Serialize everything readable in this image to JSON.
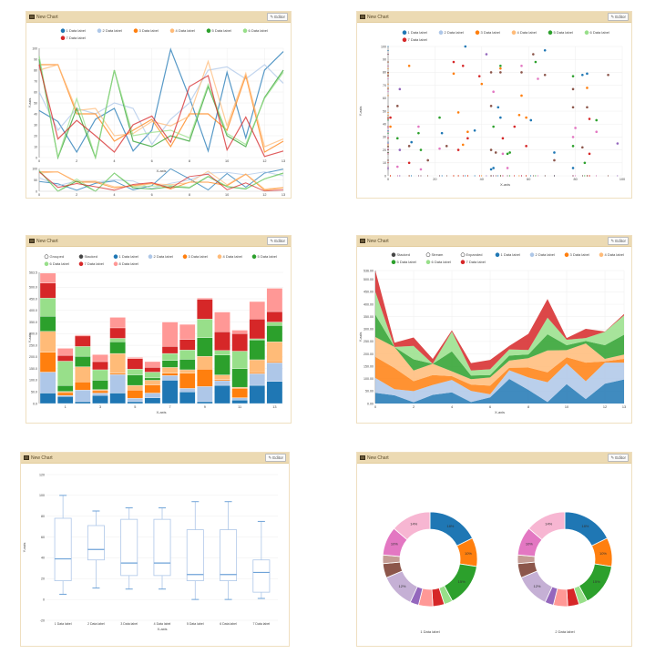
{
  "panels": [
    {
      "title": "New Chart",
      "editor": "Editor"
    },
    {
      "title": "New Chart",
      "editor": "Editor"
    },
    {
      "title": "New Chart",
      "editor": "Editor"
    },
    {
      "title": "New Chart",
      "editor": "Editor"
    },
    {
      "title": "New Chart",
      "editor": "Editor"
    },
    {
      "title": "New Chart",
      "editor": "Editor"
    }
  ],
  "colors": [
    "#1f77b4",
    "#aec7e8",
    "#ff7f0e",
    "#ffbb78",
    "#2ca02c",
    "#98df8a",
    "#d62728",
    "#ff9896",
    "#9467bd",
    "#c5b0d5",
    "#8c564b",
    "#c49c94",
    "#e377c2",
    "#f7b6d2"
  ],
  "chart_data": [
    {
      "type": "line",
      "xlabel": "X-axis",
      "ylabel": "Y-axis",
      "xlim": [
        0,
        13
      ],
      "ylim": [
        0,
        100
      ],
      "grid": true,
      "legend": "top",
      "xticks": [
        "0",
        "2",
        "4",
        "6",
        "8",
        "10",
        "12",
        "13"
      ],
      "yticks": [
        "0",
        "10",
        "20",
        "30",
        "40",
        "50",
        "60",
        "70",
        "80",
        "90",
        "100"
      ],
      "context_yticks": [
        "0",
        "50",
        "100"
      ],
      "x": [
        0,
        1,
        2,
        3,
        4,
        5,
        6,
        7,
        8,
        9,
        10,
        11,
        12,
        13
      ],
      "series": [
        {
          "name": "1 Data label",
          "values": [
            43,
            33,
            5,
            35,
            45,
            6,
            25,
            99,
            55,
            6,
            78,
            18,
            80,
            97
          ]
        },
        {
          "name": "2 Data label",
          "values": [
            60,
            25,
            45,
            40,
            50,
            45,
            12,
            35,
            50,
            80,
            83,
            72,
            85,
            68
          ]
        },
        {
          "name": "3 Data label",
          "values": [
            85,
            85,
            40,
            40,
            15,
            25,
            35,
            10,
            40,
            40,
            25,
            75,
            5,
            15
          ]
        },
        {
          "name": "4 Data label",
          "values": [
            80,
            85,
            43,
            45,
            20,
            22,
            33,
            29,
            38,
            88,
            29,
            77,
            10,
            17
          ]
        },
        {
          "name": "5 Data label",
          "values": [
            90,
            0,
            45,
            0,
            80,
            15,
            10,
            20,
            15,
            65,
            20,
            10,
            55,
            80
          ]
        },
        {
          "name": "6 Data label",
          "values": [
            93,
            0,
            54,
            0,
            80,
            20,
            23,
            25,
            18,
            67,
            22,
            12,
            54,
            78
          ]
        },
        {
          "name": "7 Data label",
          "values": [
            85,
            17,
            34,
            20,
            5,
            30,
            38,
            14,
            65,
            75,
            7,
            37,
            1,
            6
          ]
        }
      ]
    },
    {
      "type": "scatter",
      "xlabel": "X-axis",
      "ylabel": "Y-axis",
      "xlim": [
        0,
        100
      ],
      "ylim": [
        0,
        100
      ],
      "grid": true,
      "legend": "top",
      "xticks": [
        "0",
        "20",
        "40",
        "60",
        "80",
        "100"
      ],
      "yticks": [
        "0",
        "10",
        "20",
        "30",
        "40",
        "50",
        "60",
        "70",
        "80",
        "90",
        "100"
      ],
      "series": [
        {
          "name": "1 Data label",
          "points": [
            [
              33,
              100
            ],
            [
              67,
              97
            ],
            [
              83,
              78
            ],
            [
              85,
              79
            ],
            [
              47,
              53
            ],
            [
              48,
              45
            ],
            [
              61,
              43
            ],
            [
              23,
              33
            ],
            [
              37,
              35
            ],
            [
              10,
              26
            ],
            [
              44,
              5
            ],
            [
              45,
              6
            ],
            [
              71,
              18
            ],
            [
              79,
              6
            ]
          ]
        },
        {
          "name": "2 Data label",
          "points": [
            [
              9,
              85
            ],
            [
              28,
              79
            ],
            [
              40,
              71
            ],
            [
              48,
              83
            ],
            [
              57,
              62
            ],
            [
              85,
              68
            ],
            [
              30,
              49
            ],
            [
              56,
              47
            ],
            [
              59,
              45
            ],
            [
              34,
              34
            ],
            [
              32,
              24
            ],
            [
              1,
              38
            ]
          ]
        },
        {
          "name": "3 Data label",
          "points": [
            [
              63,
              88
            ],
            [
              48,
              85
            ],
            [
              79,
              77
            ],
            [
              22,
              45
            ],
            [
              45,
              38
            ],
            [
              89,
              43
            ],
            [
              4,
              29
            ],
            [
              13,
              33
            ],
            [
              14,
              20
            ],
            [
              51,
              17
            ],
            [
              52,
              18
            ],
            [
              84,
              10
            ],
            [
              79,
              23
            ]
          ]
        },
        {
          "name": "4 Data label",
          "points": [
            [
              28,
              88
            ],
            [
              32,
              85
            ],
            [
              39,
              77
            ],
            [
              1,
              45
            ],
            [
              54,
              38
            ],
            [
              34,
              29
            ],
            [
              49,
              29
            ],
            [
              30,
              20
            ],
            [
              59,
              23
            ],
            [
              9,
              10
            ],
            [
              86,
              44
            ],
            [
              86,
              17
            ]
          ]
        },
        {
          "name": "5 Data label",
          "points": [
            [
              5,
              67
            ],
            [
              42,
              94
            ],
            [
              5,
              20
            ],
            [
              98,
              25
            ]
          ]
        },
        {
          "name": "6 Data label",
          "points": [
            [
              62,
              94
            ],
            [
              48,
              80
            ],
            [
              44,
              80
            ],
            [
              57,
              80
            ],
            [
              67,
              78
            ],
            [
              4,
              54
            ],
            [
              44,
              54
            ],
            [
              79,
              67
            ],
            [
              79,
              53
            ],
            [
              85,
              53
            ],
            [
              9,
              23
            ],
            [
              25,
              23
            ],
            [
              44,
              20
            ],
            [
              46,
              18
            ],
            [
              71,
              12
            ],
            [
              17,
              12
            ],
            [
              83,
              22
            ],
            [
              94,
              78
            ]
          ]
        },
        {
          "name": "7 Data label",
          "points": [
            [
              57,
              85
            ],
            [
              64,
              75
            ],
            [
              45,
              65
            ],
            [
              13,
              38
            ],
            [
              80,
              37
            ],
            [
              89,
              34
            ],
            [
              79,
              30
            ],
            [
              22,
              21
            ],
            [
              49,
              17
            ],
            [
              51,
              6
            ],
            [
              14,
              5
            ],
            [
              4,
              7
            ]
          ]
        }
      ]
    },
    {
      "type": "bar",
      "stacked": true,
      "controls": [
        "Grouped",
        "Stacked"
      ],
      "selected_control": "Stacked",
      "xlabel": "X-axis",
      "ylabel": "Y-axis",
      "ylim": [
        0,
        563.5
      ],
      "grid": true,
      "legend": "top",
      "categories": [
        0,
        1,
        2,
        3,
        4,
        5,
        6,
        7,
        8,
        9,
        10,
        11,
        12,
        13
      ],
      "xticks": [
        "1",
        "3",
        "5",
        "7",
        "9",
        "11",
        "13"
      ],
      "yticks": [
        "0.0",
        "50.0",
        "100.0",
        "150.0",
        "200.0",
        "250.0",
        "300.0",
        "350.0",
        "400.0",
        "450.0",
        "500.0",
        "563.5"
      ],
      "series": [
        {
          "name": "1 Data label",
          "values": [
            45,
            30,
            8,
            35,
            45,
            8,
            25,
            100,
            50,
            8,
            78,
            15,
            78,
            95
          ]
        },
        {
          "name": "2 Data label",
          "values": [
            90,
            5,
            50,
            10,
            80,
            15,
            20,
            20,
            15,
            65,
            20,
            10,
            50,
            80
          ]
        },
        {
          "name": "3 Data label",
          "values": [
            85,
            12,
            35,
            10,
            5,
            35,
            35,
            10,
            65,
            75,
            5,
            40,
            5,
            5
          ]
        },
        {
          "name": "4 Data label",
          "values": [
            90,
            5,
            65,
            5,
            85,
            20,
            20,
            25,
            15,
            55,
            20,
            5,
            55,
            85
          ]
        },
        {
          "name": "5 Data label",
          "values": [
            65,
            25,
            45,
            40,
            50,
            45,
            10,
            30,
            45,
            80,
            85,
            80,
            85,
            70
          ]
        },
        {
          "name": "6 Data label",
          "values": [
            78,
            105,
            42,
            45,
            15,
            25,
            25,
            30,
            40,
            80,
            20,
            75,
            5,
            15
          ]
        },
        {
          "name": "7 Data label",
          "values": [
            65,
            25,
            45,
            35,
            45,
            45,
            20,
            30,
            45,
            85,
            80,
            75,
            85,
            45
          ]
        },
        {
          "name": "8 Data label",
          "values": [
            42,
            30,
            5,
            30,
            45,
            5,
            25,
            105,
            65,
            5,
            85,
            15,
            75,
            100
          ]
        }
      ]
    },
    {
      "type": "area",
      "stacked": true,
      "controls": [
        "Stacked",
        "Stream",
        "Expanded"
      ],
      "selected_control": "Stacked",
      "xlabel": "X-axis",
      "ylabel": "Y-axis",
      "xlim": [
        0,
        13
      ],
      "ylim": [
        0,
        536
      ],
      "grid": true,
      "legend": "top",
      "xticks": [
        "0",
        "2",
        "4",
        "6",
        "8",
        "10",
        "12",
        "13"
      ],
      "yticks": [
        "0.00",
        "50.00",
        "100.00",
        "150.00",
        "200.00",
        "250.00",
        "300.00",
        "350.00",
        "400.00",
        "450.00",
        "500.00",
        "536.00"
      ],
      "x": [
        0,
        1,
        2,
        3,
        4,
        5,
        6,
        7,
        8,
        9,
        10,
        11,
        12,
        13
      ],
      "series": [
        {
          "name": "1 Data label",
          "values": [
            43,
            33,
            5,
            35,
            45,
            6,
            25,
            99,
            55,
            6,
            78,
            18,
            80,
            97
          ]
        },
        {
          "name": "2 Data label",
          "values": [
            60,
            25,
            45,
            40,
            50,
            45,
            12,
            35,
            50,
            80,
            83,
            72,
            85,
            68
          ]
        },
        {
          "name": "3 Data label",
          "values": [
            85,
            85,
            40,
            40,
            15,
            25,
            35,
            10,
            40,
            40,
            25,
            75,
            5,
            15
          ]
        },
        {
          "name": "4 Data label",
          "values": [
            80,
            85,
            43,
            45,
            20,
            22,
            33,
            29,
            38,
            88,
            29,
            77,
            10,
            17
          ]
        },
        {
          "name": "5 Data label",
          "values": [
            90,
            0,
            45,
            0,
            80,
            15,
            10,
            20,
            15,
            65,
            20,
            10,
            55,
            80
          ]
        },
        {
          "name": "6 Data label",
          "values": [
            93,
            0,
            54,
            0,
            80,
            20,
            23,
            25,
            18,
            67,
            22,
            12,
            54,
            78
          ]
        },
        {
          "name": "7 Data label",
          "values": [
            85,
            17,
            34,
            20,
            5,
            30,
            38,
            14,
            65,
            75,
            7,
            37,
            1,
            6
          ]
        }
      ]
    },
    {
      "type": "box",
      "xlabel": "X-axis",
      "ylabel": "Y-axis",
      "ylim": [
        -20,
        120
      ],
      "grid": true,
      "yticks": [
        "-20",
        "0",
        "20",
        "40",
        "60",
        "80",
        "100",
        "120"
      ],
      "categories": [
        "1 Data label",
        "2 Data label",
        "3 Data label",
        "4 Data label",
        "5 Data label",
        "6 Data label",
        "7 Data label"
      ],
      "boxes": [
        {
          "min": 5,
          "q1": 18,
          "median": 39,
          "q3": 78,
          "max": 100
        },
        {
          "min": 11,
          "q1": 38,
          "median": 48,
          "q3": 71,
          "max": 85
        },
        {
          "min": 10,
          "q1": 23,
          "median": 35,
          "q3": 77,
          "max": 88
        },
        {
          "min": 10,
          "q1": 23,
          "median": 35,
          "q3": 77,
          "max": 88
        },
        {
          "min": 0,
          "q1": 18,
          "median": 24,
          "q3": 67,
          "max": 94
        },
        {
          "min": 0,
          "q1": 18,
          "median": 24,
          "q3": 67,
          "max": 94
        },
        {
          "min": 1,
          "q1": 7,
          "median": 26,
          "q3": 38,
          "max": 75
        }
      ]
    },
    {
      "type": "pie",
      "donut": true,
      "pies": [
        {
          "name": "1 Data label",
          "values": [
            18,
            10,
            15,
            3,
            4,
            5,
            3,
            12,
            5,
            3,
            10,
            14
          ],
          "labels": [
            "18%",
            "10%",
            "15%",
            "",
            "",
            "",
            "",
            "12%",
            "",
            "",
            "10%",
            "14%"
          ]
        },
        {
          "name": "2 Data label",
          "values": [
            18,
            10,
            15,
            3,
            4,
            5,
            3,
            12,
            5,
            3,
            10,
            14
          ],
          "labels": [
            "18%",
            "10%",
            "15%",
            "",
            "",
            "",
            "",
            "12%",
            "",
            "",
            "10%",
            "14%"
          ]
        }
      ],
      "slice_colors": [
        "#1f77b4",
        "#ff7f0e",
        "#2ca02c",
        "#98df8a",
        "#d62728",
        "#ff9896",
        "#9467bd",
        "#c5b0d5",
        "#8c564b",
        "#c49c94",
        "#e377c2",
        "#f7b6d2"
      ]
    }
  ]
}
